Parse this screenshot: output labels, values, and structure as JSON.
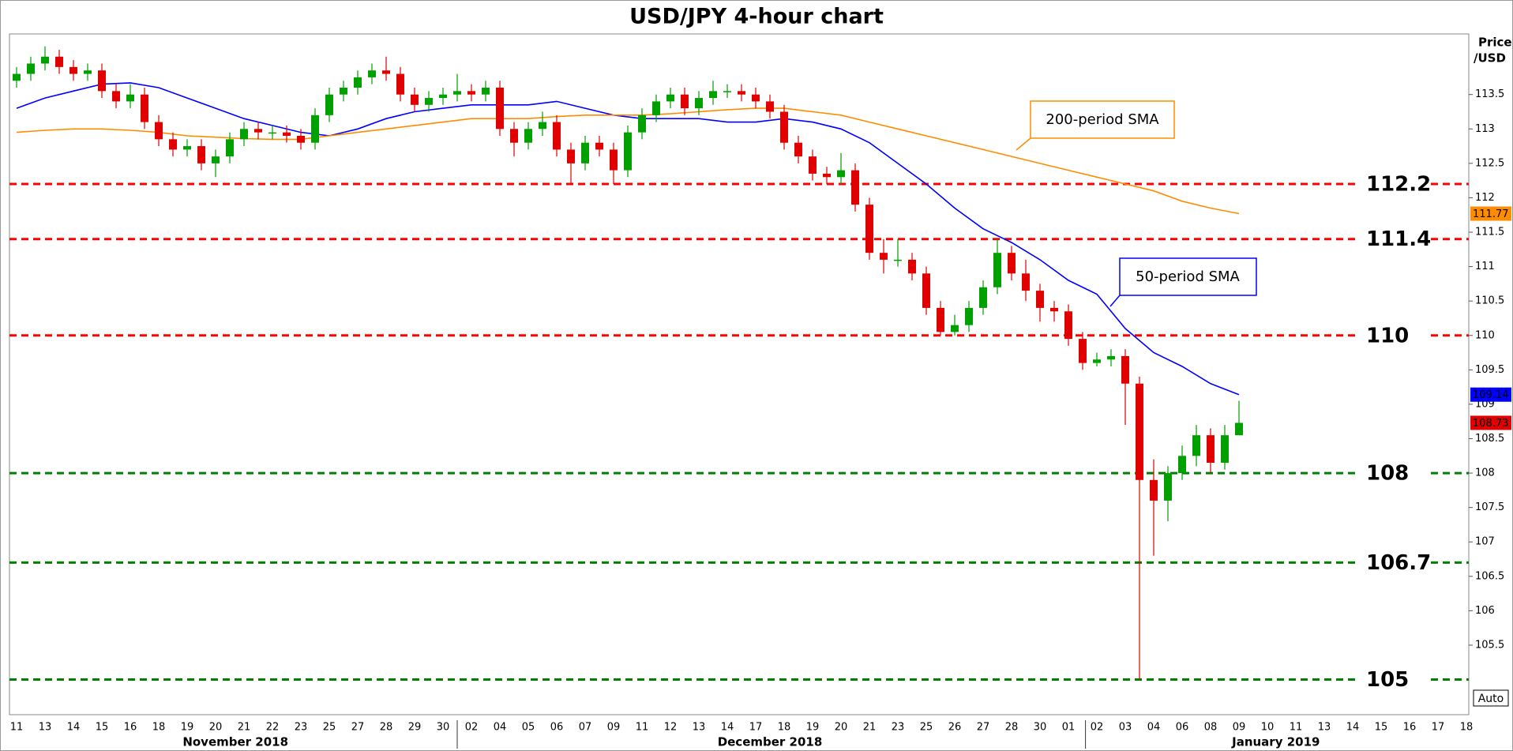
{
  "chart_data": {
    "type": "candlestick",
    "title": "USD/JPY 4-hour chart",
    "y_axis_label": [
      "Price",
      "/USD"
    ],
    "button": "Auto",
    "categories": [
      "11",
      "13",
      "14",
      "15",
      "16",
      "18",
      "19",
      "20",
      "21",
      "22",
      "23",
      "25",
      "27",
      "28",
      "29",
      "30",
      "02",
      "04",
      "05",
      "06",
      "07",
      "09",
      "11",
      "12",
      "13",
      "14",
      "17",
      "18",
      "19",
      "20",
      "21",
      "23",
      "25",
      "26",
      "27",
      "28",
      "30",
      "01",
      "02",
      "03",
      "04",
      "06",
      "08",
      "09",
      "10",
      "11",
      "13",
      "14",
      "15",
      "16",
      "17",
      "18"
    ],
    "x_group_labels": [
      "November 2018",
      "December 2018",
      "January 2019"
    ],
    "ylim": [
      104.49,
      114.38
    ],
    "yticks": [
      105.5,
      106,
      106.5,
      107,
      107.5,
      108,
      108.5,
      109,
      109.5,
      110,
      110.5,
      111,
      111.5,
      112,
      112.5,
      113,
      113.5
    ],
    "grid": false,
    "candles": {
      "up_color": "#00a000",
      "down_color": "#e00000",
      "x": [
        0,
        0.5,
        1,
        1.5,
        2,
        2.5,
        3,
        3.5,
        4,
        4.5,
        5,
        5.5,
        6,
        6.5,
        7,
        7.5,
        8,
        8.5,
        9,
        9.5,
        10,
        10.5,
        11,
        11.5,
        12,
        12.5,
        13,
        13.5,
        14,
        14.5,
        15,
        15.5,
        16,
        16.5,
        17,
        17.5,
        18,
        18.5,
        19,
        19.5,
        20,
        20.5,
        21,
        21.5,
        22,
        22.5,
        23,
        23.5,
        24,
        24.5,
        25,
        25.5,
        26,
        26.5,
        27,
        27.5,
        28,
        28.5,
        29,
        29.5,
        30,
        30.5,
        31,
        31.5,
        32,
        32.5,
        33,
        33.5,
        34,
        34.5,
        35,
        35.5,
        36,
        36.5,
        37,
        37.5,
        38,
        38.5,
        39,
        39.5,
        40,
        40.5,
        41,
        41.5,
        42,
        42.5,
        43
      ],
      "open": [
        113.7,
        113.8,
        113.95,
        114.05,
        113.9,
        113.8,
        113.85,
        113.55,
        113.4,
        113.5,
        113.1,
        112.85,
        112.7,
        112.75,
        112.5,
        112.6,
        112.85,
        113.0,
        112.95,
        112.95,
        112.9,
        112.8,
        113.2,
        113.5,
        113.6,
        113.75,
        113.85,
        113.8,
        113.5,
        113.35,
        113.45,
        113.5,
        113.55,
        113.5,
        113.6,
        113.0,
        112.8,
        113.0,
        113.1,
        112.7,
        112.5,
        112.8,
        112.7,
        112.4,
        112.95,
        113.2,
        113.4,
        113.5,
        113.3,
        113.45,
        113.55,
        113.55,
        113.5,
        113.4,
        113.25,
        112.8,
        112.6,
        112.35,
        112.3,
        112.4,
        111.9,
        111.2,
        111.1,
        111.1,
        110.9,
        110.4,
        110.05,
        110.15,
        110.4,
        110.7,
        111.2,
        110.9,
        110.65,
        110.4,
        110.35,
        109.95,
        109.6,
        109.65,
        109.7,
        109.3,
        107.9,
        107.6,
        108.0,
        108.25,
        108.55,
        108.15,
        108.55
      ],
      "high": [
        113.9,
        114.05,
        114.2,
        114.15,
        114.0,
        113.95,
        113.95,
        113.65,
        113.65,
        113.6,
        113.2,
        112.95,
        112.85,
        112.85,
        112.7,
        112.95,
        113.1,
        113.1,
        113.05,
        113.05,
        113.0,
        113.3,
        113.6,
        113.7,
        113.85,
        113.95,
        114.05,
        113.9,
        113.6,
        113.55,
        113.6,
        113.8,
        113.65,
        113.7,
        113.7,
        113.1,
        113.1,
        113.25,
        113.2,
        112.8,
        112.9,
        112.9,
        112.8,
        113.05,
        113.3,
        113.5,
        113.6,
        113.6,
        113.55,
        113.7,
        113.65,
        113.65,
        113.6,
        113.5,
        113.35,
        112.9,
        112.7,
        112.45,
        112.65,
        112.5,
        112.0,
        111.4,
        111.4,
        111.2,
        111.0,
        110.5,
        110.3,
        110.5,
        110.8,
        111.4,
        111.3,
        111.1,
        110.75,
        110.5,
        110.45,
        110.05,
        109.75,
        109.8,
        109.8,
        109.4,
        108.2,
        108.1,
        108.4,
        108.7,
        108.65,
        108.7,
        109.05
      ],
      "low": [
        113.6,
        113.7,
        113.85,
        113.8,
        113.7,
        113.7,
        113.45,
        113.3,
        113.3,
        113.0,
        112.75,
        112.6,
        112.6,
        112.4,
        112.3,
        112.5,
        112.75,
        112.85,
        112.85,
        112.8,
        112.7,
        112.7,
        113.1,
        113.4,
        113.5,
        113.65,
        113.7,
        113.4,
        113.25,
        113.25,
        113.35,
        113.4,
        113.4,
        113.4,
        112.9,
        112.6,
        112.7,
        112.9,
        112.6,
        112.2,
        112.4,
        112.6,
        112.2,
        112.3,
        112.85,
        113.1,
        113.3,
        113.2,
        113.2,
        113.35,
        113.45,
        113.4,
        113.3,
        113.15,
        112.7,
        112.5,
        112.25,
        112.2,
        112.2,
        111.8,
        111.1,
        110.9,
        111.0,
        110.8,
        110.3,
        110.0,
        110.0,
        110.05,
        110.3,
        110.6,
        110.8,
        110.5,
        110.2,
        110.2,
        109.85,
        109.5,
        109.55,
        109.55,
        108.7,
        105.0,
        106.8,
        107.3,
        107.9,
        108.1,
        108.0,
        108.05,
        108.55
      ],
      "close": [
        113.8,
        113.95,
        114.05,
        113.9,
        113.8,
        113.85,
        113.55,
        113.4,
        113.5,
        113.1,
        112.85,
        112.7,
        112.75,
        112.5,
        112.6,
        112.85,
        113.0,
        112.95,
        112.95,
        112.9,
        112.8,
        113.2,
        113.5,
        113.6,
        113.75,
        113.85,
        113.8,
        113.5,
        113.35,
        113.45,
        113.5,
        113.55,
        113.5,
        113.6,
        113.0,
        112.8,
        113.0,
        113.1,
        112.7,
        112.5,
        112.8,
        112.7,
        112.4,
        112.95,
        113.2,
        113.4,
        113.5,
        113.3,
        113.45,
        113.55,
        113.55,
        113.5,
        113.4,
        113.25,
        112.8,
        112.6,
        112.35,
        112.3,
        112.4,
        111.9,
        111.2,
        111.1,
        111.1,
        110.9,
        110.4,
        110.05,
        110.15,
        110.4,
        110.7,
        111.2,
        110.9,
        110.65,
        110.4,
        110.35,
        109.95,
        109.6,
        109.65,
        109.7,
        109.3,
        107.9,
        107.6,
        108.0,
        108.25,
        108.55,
        108.15,
        108.55,
        108.73
      ]
    },
    "series": [
      {
        "name": "50-period SMA",
        "color": "#0000ff",
        "x": [
          0,
          1,
          2,
          3,
          4,
          5,
          6,
          7,
          8,
          9,
          10,
          11,
          12,
          13,
          14,
          15,
          16,
          17,
          18,
          19,
          20,
          21,
          22,
          23,
          24,
          25,
          26,
          27,
          28,
          29,
          30,
          31,
          32,
          33,
          34,
          35,
          36,
          37,
          38,
          39,
          40,
          41,
          42,
          43
        ],
        "values": [
          113.3,
          113.45,
          113.55,
          113.65,
          113.67,
          113.6,
          113.45,
          113.3,
          113.15,
          113.05,
          112.95,
          112.9,
          113.0,
          113.15,
          113.25,
          113.3,
          113.35,
          113.35,
          113.35,
          113.4,
          113.3,
          113.2,
          113.15,
          113.15,
          113.15,
          113.1,
          113.1,
          113.15,
          113.1,
          113.0,
          112.8,
          112.5,
          112.2,
          111.85,
          111.55,
          111.35,
          111.1,
          110.8,
          110.6,
          110.1,
          109.75,
          109.55,
          109.3,
          109.14
        ]
      },
      {
        "name": "200-period SMA",
        "color": "#ff8c00",
        "x": [
          0,
          1,
          2,
          3,
          4,
          5,
          6,
          7,
          8,
          9,
          10,
          11,
          12,
          13,
          14,
          15,
          16,
          17,
          18,
          19,
          20,
          21,
          22,
          23,
          24,
          25,
          26,
          27,
          28,
          29,
          30,
          31,
          32,
          33,
          34,
          35,
          36,
          37,
          38,
          39,
          40,
          41,
          42,
          43
        ],
        "values": [
          112.95,
          112.98,
          113.0,
          113.0,
          112.98,
          112.95,
          112.9,
          112.88,
          112.86,
          112.85,
          112.85,
          112.9,
          112.95,
          113.0,
          113.05,
          113.1,
          113.15,
          113.15,
          113.15,
          113.18,
          113.2,
          113.2,
          113.2,
          113.22,
          113.25,
          113.28,
          113.3,
          113.3,
          113.25,
          113.2,
          113.1,
          113.0,
          112.9,
          112.8,
          112.7,
          112.6,
          112.5,
          112.4,
          112.3,
          112.2,
          112.1,
          111.95,
          111.85,
          111.77
        ]
      }
    ],
    "levels": [
      {
        "value": 112.2,
        "color": "#ff0000"
      },
      {
        "value": 111.4,
        "color": "#ff0000"
      },
      {
        "value": 110,
        "color": "#ff0000"
      },
      {
        "value": 108,
        "color": "#008000"
      },
      {
        "value": 106.7,
        "color": "#008000"
      },
      {
        "value": 105,
        "color": "#008000"
      }
    ]
  }
}
